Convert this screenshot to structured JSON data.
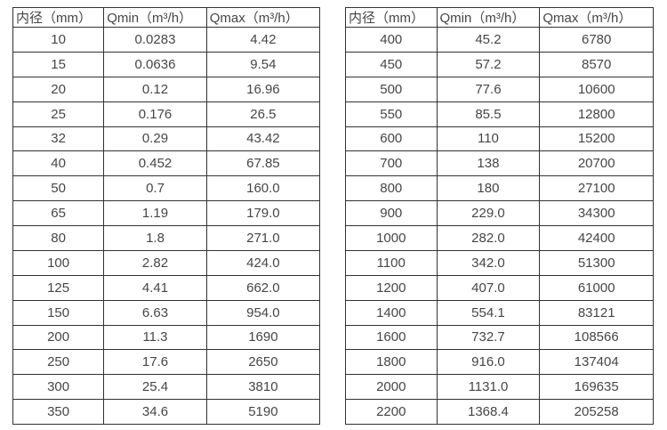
{
  "colors": {
    "background": "#ffffff",
    "border": "#323232",
    "text": "#464646"
  },
  "chart_data": [
    {
      "type": "table",
      "title": "",
      "headers": [
        "内径（mm）",
        "Qmin（m³/h）",
        "Qmax（m³/h）"
      ],
      "rows": [
        [
          "10",
          "0.0283",
          "4.42"
        ],
        [
          "15",
          "0.0636",
          "9.54"
        ],
        [
          "20",
          "0.12",
          "16.96"
        ],
        [
          "25",
          "0.176",
          "26.5"
        ],
        [
          "32",
          "0.29",
          "43.42"
        ],
        [
          "40",
          "0.452",
          "67.85"
        ],
        [
          "50",
          "0.7",
          "160.0"
        ],
        [
          "65",
          "1.19",
          "179.0"
        ],
        [
          "80",
          "1.8",
          "271.0"
        ],
        [
          "100",
          "2.82",
          "424.0"
        ],
        [
          "125",
          "4.41",
          "662.0"
        ],
        [
          "150",
          "6.63",
          "954.0"
        ],
        [
          "200",
          "11.3",
          "1690"
        ],
        [
          "250",
          "17.6",
          "2650"
        ],
        [
          "300",
          "25.4",
          "3810"
        ],
        [
          "350",
          "34.6",
          "5190"
        ]
      ]
    },
    {
      "type": "table",
      "title": "",
      "headers": [
        "内径（mm）",
        "Qmin（m³/h）",
        "Qmax（m³/h）"
      ],
      "rows": [
        [
          "400",
          "45.2",
          "6780"
        ],
        [
          "450",
          "57.2",
          "8570"
        ],
        [
          "500",
          "77.6",
          "10600"
        ],
        [
          "550",
          "85.5",
          "12800"
        ],
        [
          "600",
          "110",
          "15200"
        ],
        [
          "700",
          "138",
          "20700"
        ],
        [
          "800",
          "180",
          "27100"
        ],
        [
          "900",
          "229.0",
          "34300"
        ],
        [
          "1000",
          "282.0",
          "42400"
        ],
        [
          "1100",
          "342.0",
          "51300"
        ],
        [
          "1200",
          "407.0",
          "61000"
        ],
        [
          "1400",
          "554.1",
          "83121"
        ],
        [
          "1600",
          "732.7",
          "108566"
        ],
        [
          "1800",
          "916.0",
          "137404"
        ],
        [
          "2000",
          "1131.0",
          "169635"
        ],
        [
          "2200",
          "1368.4",
          "205258"
        ]
      ]
    }
  ]
}
